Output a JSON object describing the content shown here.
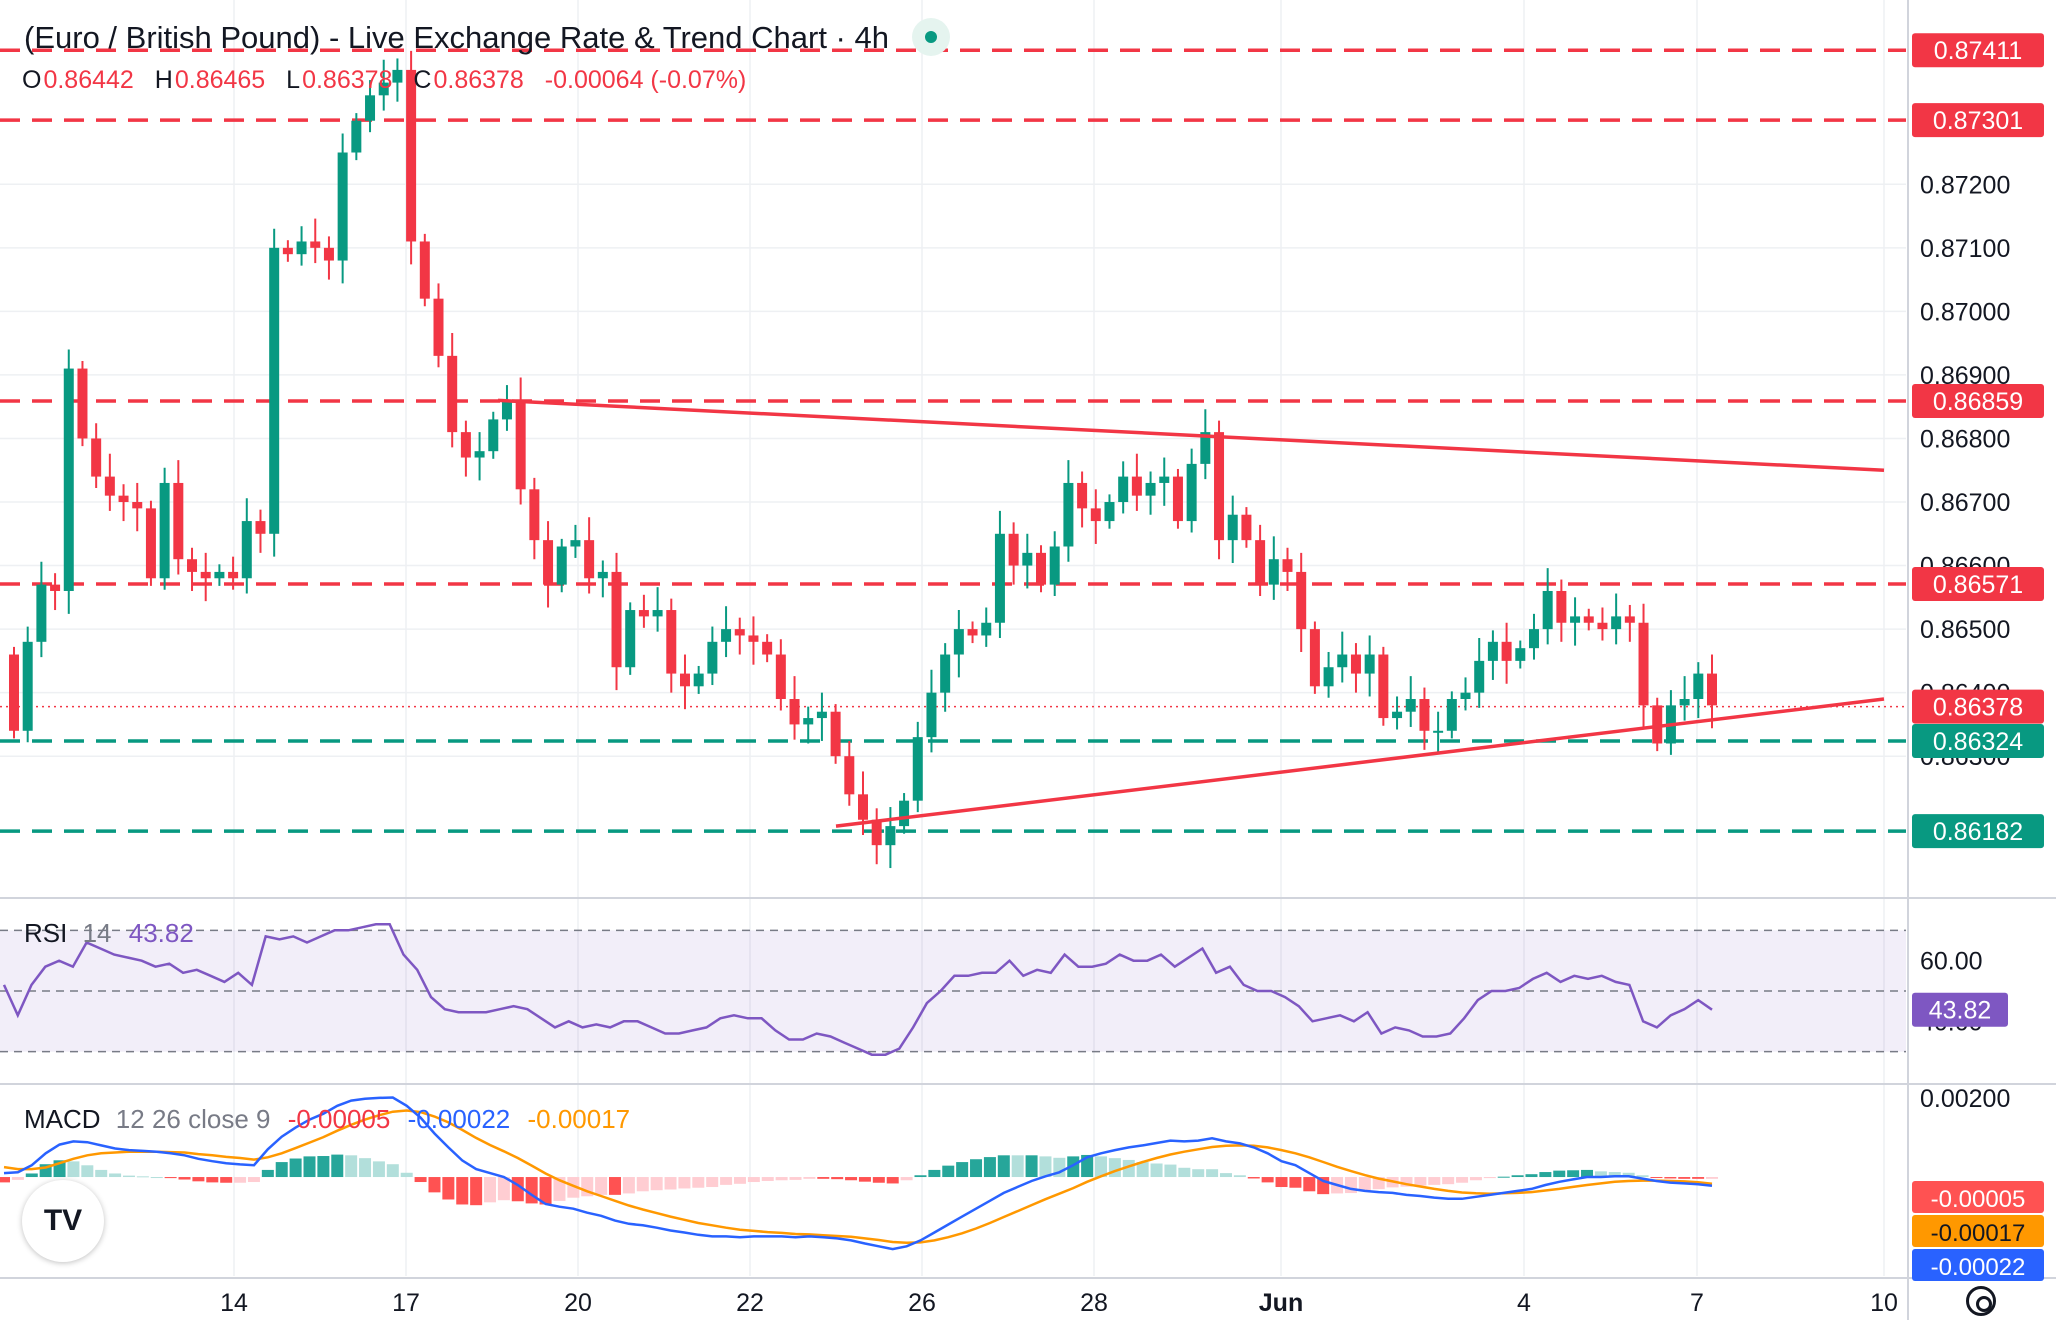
{
  "title": "(Euro / British Pound) - Live Exchange Rate & Trend Chart · 4h",
  "ohlc": {
    "o_label": "O",
    "o": "0.86442",
    "h_label": "H",
    "h": "0.86465",
    "l_label": "L",
    "l": "0.86378",
    "c_label": "C",
    "c": "0.86378",
    "change": "-0.00064 (-0.07%)"
  },
  "rsi_legend": {
    "name": "RSI",
    "param": "14",
    "value": "43.82"
  },
  "macd_legend": {
    "name": "MACD",
    "param": "12 26 close 9",
    "hist": "-0.00005",
    "macd": "-0.00022",
    "signal": "-0.00017"
  },
  "colors": {
    "up": "#089981",
    "down": "#f23645",
    "rsi": "#7e57c2",
    "macd": "#2962ff",
    "signal": "#ff9800",
    "grid": "#eef0f3"
  },
  "logo_icon": "tradingview-logo-icon",
  "settings_icon": "gear-icon",
  "chart_data": {
    "type": "candlestick",
    "symbol": "EUR/GBP",
    "timeframe": "4h",
    "x_ticks": [
      "14",
      "17",
      "20",
      "22",
      "26",
      "28",
      "Jun",
      "4",
      "7",
      "10"
    ],
    "y_ticks": [
      "0.87200",
      "0.87100",
      "0.87000",
      "0.86900",
      "0.86800",
      "0.86700",
      "0.86600",
      "0.86500",
      "0.86400",
      "0.86300"
    ],
    "ylim": [
      0.8608,
      0.8749
    ],
    "grid": true,
    "closes": [
      0.8634,
      0.8648,
      0.8657,
      0.8656,
      0.8691,
      0.868,
      0.8674,
      0.8671,
      0.867,
      0.8669,
      0.8658,
      0.8673,
      0.8661,
      0.8659,
      0.8658,
      0.8659,
      0.8658,
      0.8667,
      0.8665,
      0.871,
      0.8709,
      0.8711,
      0.871,
      0.8708,
      0.8725,
      0.873,
      0.8734,
      0.8736,
      0.8738,
      0.8711,
      0.8702,
      0.8693,
      0.8681,
      0.8677,
      0.8678,
      0.8683,
      0.8686,
      0.8672,
      0.8664,
      0.8657,
      0.8663,
      0.8664,
      0.8658,
      0.8659,
      0.8644,
      0.8653,
      0.8652,
      0.8653,
      0.8643,
      0.8641,
      0.8643,
      0.8648,
      0.865,
      0.8649,
      0.8648,
      0.8646,
      0.8639,
      0.8635,
      0.8636,
      0.8637,
      0.863,
      0.8624,
      0.862,
      0.8616,
      0.8619,
      0.8623,
      0.8633,
      0.864,
      0.8646,
      0.865,
      0.8649,
      0.8651,
      0.8665,
      0.866,
      0.8662,
      0.8657,
      0.8663,
      0.8673,
      0.8669,
      0.8667,
      0.867,
      0.8674,
      0.8671,
      0.8673,
      0.8674,
      0.8667,
      0.8676,
      0.8681,
      0.8664,
      0.8668,
      0.8664,
      0.8657,
      0.8661,
      0.8659,
      0.865,
      0.8641,
      0.8644,
      0.8646,
      0.8643,
      0.8646,
      0.8636,
      0.8637,
      0.8639,
      0.8634,
      0.8634,
      0.8639,
      0.864,
      0.8645,
      0.8648,
      0.8645,
      0.8647,
      0.865,
      0.8656,
      0.8651,
      0.8652,
      0.8651,
      0.865,
      0.8652,
      0.8651,
      0.8638,
      0.8632,
      0.8638,
      0.8639,
      0.8643,
      0.8638
    ],
    "horizontal_levels": [
      {
        "value": "0.87411",
        "color": "#f23645",
        "style": "dashed"
      },
      {
        "value": "0.87301",
        "color": "#f23645",
        "style": "dashed"
      },
      {
        "value": "0.86859",
        "color": "#f23645",
        "style": "dashed"
      },
      {
        "value": "0.86571",
        "color": "#f23645",
        "style": "dashed"
      },
      {
        "value": "0.86324",
        "color": "#089981",
        "style": "dashed"
      },
      {
        "value": "0.86182",
        "color": "#089981",
        "style": "dashed"
      }
    ],
    "current_price": {
      "value": "0.86378",
      "color": "#f23645"
    },
    "trendlines": [
      {
        "from": {
          "x": "18.5",
          "y": 0.8686
        },
        "to": {
          "x": "10",
          "y": 0.8675
        },
        "color": "#f23645"
      },
      {
        "from": {
          "x": "24",
          "y": 0.8619
        },
        "to": {
          "x": "10",
          "y": 0.8639
        },
        "color": "#f23645"
      }
    ],
    "rsi": {
      "y_ticks": [
        "60.00",
        "40.00"
      ],
      "upper": 70,
      "lower": 30,
      "middle": 50,
      "last": "43.82",
      "values": [
        52,
        42,
        52,
        58,
        60,
        58,
        66,
        64,
        62,
        61,
        60,
        58,
        59,
        56,
        57,
        55,
        53,
        56,
        52,
        68,
        67,
        68,
        66,
        68,
        70,
        70,
        71,
        72,
        72,
        62,
        57,
        48,
        44,
        43,
        43,
        43,
        44,
        45,
        44,
        41,
        38,
        40,
        38,
        39,
        38,
        40,
        40,
        38,
        36,
        36,
        37,
        38,
        41,
        42,
        41,
        41,
        37,
        34,
        34,
        36,
        35,
        33,
        31,
        29,
        29,
        31,
        38,
        46,
        50,
        55,
        55,
        56,
        56,
        60,
        55,
        57,
        56,
        62,
        58,
        58,
        59,
        62,
        60,
        60,
        62,
        58,
        61,
        64,
        56,
        58,
        52,
        50,
        50,
        48,
        45,
        40,
        41,
        42,
        40,
        43,
        36,
        38,
        37,
        35,
        35,
        36,
        41,
        47,
        50,
        50,
        51,
        54,
        56,
        53,
        55,
        54,
        55,
        53,
        52,
        40,
        38,
        42,
        44,
        47,
        43.82
      ]
    },
    "macd": {
      "y_ticks": [
        "0.00200"
      ],
      "hist_last": "-0.00005",
      "macd_last": "-0.00022",
      "signal_last": "-0.00017",
      "macd_values": [
        0.0001,
        0.00012,
        0.0003,
        0.0006,
        0.00082,
        0.0009,
        0.00088,
        0.0008,
        0.00072,
        0.00068,
        0.00066,
        0.00064,
        0.0006,
        0.00055,
        0.00046,
        0.0004,
        0.00035,
        0.00032,
        0.0003,
        0.0007,
        0.00102,
        0.00125,
        0.00145,
        0.0016,
        0.0018,
        0.00193,
        0.00198,
        0.002,
        0.00201,
        0.0018,
        0.0015,
        0.0011,
        0.00075,
        0.00042,
        0.0002,
        0.0001,
        0.0,
        -0.0002,
        -0.00045,
        -0.00068,
        -0.00075,
        -0.0008,
        -0.0009,
        -0.00098,
        -0.0011,
        -0.00118,
        -0.00122,
        -0.00128,
        -0.00135,
        -0.0014,
        -0.00146,
        -0.0015,
        -0.0015,
        -0.00152,
        -0.0015,
        -0.0015,
        -0.0015,
        -0.00152,
        -0.0015,
        -0.00152,
        -0.00155,
        -0.0016,
        -0.00168,
        -0.00175,
        -0.00182,
        -0.00175,
        -0.0016,
        -0.0014,
        -0.0012,
        -0.001,
        -0.0008,
        -0.0006,
        -0.0004,
        -0.00025,
        -0.0001,
        2e-05,
        0.00012,
        0.0003,
        0.0005,
        0.0006,
        0.00068,
        0.00075,
        0.0008,
        0.00086,
        0.00092,
        0.0009,
        0.00092,
        0.00098,
        0.0009,
        0.00085,
        0.00075,
        0.0006,
        0.0004,
        0.0003,
        0.0001,
        -0.0001,
        -0.0002,
        -0.0003,
        -0.00035,
        -0.00038,
        -0.0004,
        -0.00045,
        -0.00048,
        -0.00052,
        -0.00055,
        -0.00055,
        -0.0005,
        -0.00045,
        -0.0004,
        -0.00035,
        -0.0003,
        -0.0002,
        -0.00012,
        -6e-05,
        0.0,
        0.0,
        2e-05,
        2e-05,
        -4e-05,
        -0.0001,
        -0.00014,
        -0.00016,
        -0.00018,
        -0.00022
      ],
      "signal_values": [
        0.00025,
        0.0002,
        0.0002,
        0.00024,
        0.00035,
        0.00046,
        0.00055,
        0.0006,
        0.00062,
        0.00064,
        0.00064,
        0.00064,
        0.00063,
        0.00062,
        0.00058,
        0.00055,
        0.00051,
        0.00048,
        0.00044,
        0.0005,
        0.0006,
        0.00073,
        0.00087,
        0.00101,
        0.00117,
        0.00132,
        0.00145,
        0.00156,
        0.00165,
        0.00168,
        0.00164,
        0.00153,
        0.00138,
        0.00119,
        0.00099,
        0.00081,
        0.00065,
        0.00048,
        0.00029,
        9e-05,
        -8e-05,
        -0.00022,
        -0.00036,
        -0.00048,
        -0.0006,
        -0.00072,
        -0.00082,
        -0.00091,
        -0.001,
        -0.00108,
        -0.00116,
        -0.00122,
        -0.00128,
        -0.00133,
        -0.00136,
        -0.00139,
        -0.00141,
        -0.00144,
        -0.00145,
        -0.00147,
        -0.00149,
        -0.00151,
        -0.00155,
        -0.00159,
        -0.00164,
        -0.00166,
        -0.00165,
        -0.0016,
        -0.00152,
        -0.00142,
        -0.0013,
        -0.00116,
        -0.00101,
        -0.00086,
        -0.00071,
        -0.00056,
        -0.00042,
        -0.00028,
        -0.00012,
        2e-05,
        0.00015,
        0.00027,
        0.00038,
        0.00048,
        0.00057,
        0.00064,
        0.0007,
        0.00076,
        0.00079,
        0.0008,
        0.00079,
        0.00075,
        0.00068,
        0.0006,
        0.0005,
        0.00038,
        0.00026,
        0.00015,
        5e-05,
        -4e-05,
        -0.00011,
        -0.00018,
        -0.00024,
        -0.0003,
        -0.00035,
        -0.00039,
        -0.00041,
        -0.00042,
        -0.00041,
        -0.0004,
        -0.00038,
        -0.00034,
        -0.0003,
        -0.00025,
        -0.0002,
        -0.00016,
        -0.00012,
        -0.0001,
        -9e-05,
        -9e-05,
        -0.0001,
        -0.00011,
        -0.00013,
        -0.00017
      ]
    }
  }
}
